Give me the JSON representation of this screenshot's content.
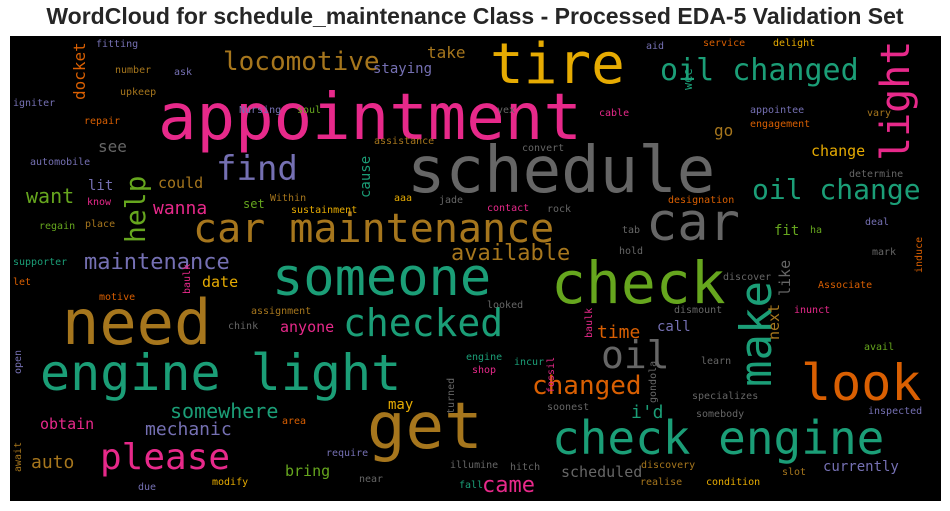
{
  "title": "WordCloud for schedule_maintenance Class - Processed EDA-5 Validation Set",
  "palette": {
    "teal": "#1b9e77",
    "orange": "#d95f02",
    "purple": "#7570b3",
    "pink": "#e7298a",
    "green": "#66a61e",
    "gold": "#e6ab02",
    "brown": "#a6761d",
    "gray": "#666666"
  },
  "words": [
    {
      "text": "appointment",
      "color": "#e7298a",
      "vertical": false
    },
    {
      "text": "schedule",
      "color": "#666666",
      "vertical": false
    },
    {
      "text": "tire",
      "color": "#e6ab02",
      "vertical": false
    },
    {
      "text": "light",
      "color": "#e7298a",
      "vertical": true
    },
    {
      "text": "car maintenance",
      "color": "#a6761d",
      "vertical": false
    },
    {
      "text": "car",
      "color": "#666666",
      "vertical": false
    },
    {
      "text": "someone",
      "color": "#1b9e77",
      "vertical": false
    },
    {
      "text": "check",
      "color": "#66a61e",
      "vertical": false
    },
    {
      "text": "need",
      "color": "#a6761d",
      "vertical": false
    },
    {
      "text": "engine light",
      "color": "#1b9e77",
      "vertical": false
    },
    {
      "text": "get",
      "color": "#a6761d",
      "vertical": false
    },
    {
      "text": "check engine",
      "color": "#1b9e77",
      "vertical": false
    },
    {
      "text": "look",
      "color": "#d95f02",
      "vertical": false
    },
    {
      "text": "make",
      "color": "#1b9e77",
      "vertical": true
    },
    {
      "text": "checked",
      "color": "#1b9e77",
      "vertical": false
    },
    {
      "text": "oil",
      "color": "#666666",
      "vertical": false
    },
    {
      "text": "please",
      "color": "#e7298a",
      "vertical": false
    },
    {
      "text": "find",
      "color": "#7570b3",
      "vertical": false
    },
    {
      "text": "oil changed",
      "color": "#1b9e77",
      "vertical": false
    },
    {
      "text": "oil change",
      "color": "#1b9e77",
      "vertical": false
    },
    {
      "text": "locomotive",
      "color": "#a6761d",
      "vertical": false
    },
    {
      "text": "help",
      "color": "#66a61e",
      "vertical": true
    },
    {
      "text": "maintenance",
      "color": "#7570b3",
      "vertical": false
    },
    {
      "text": "available",
      "color": "#a6761d",
      "vertical": false
    },
    {
      "text": "changed",
      "color": "#d95f02",
      "vertical": false
    },
    {
      "text": "somewhere",
      "color": "#1b9e77",
      "vertical": false
    },
    {
      "text": "came",
      "color": "#e7298a",
      "vertical": false
    },
    {
      "text": "want",
      "color": "#66a61e",
      "vertical": false
    },
    {
      "text": "wanna",
      "color": "#e7298a",
      "vertical": false
    },
    {
      "text": "mechanic",
      "color": "#7570b3",
      "vertical": false
    },
    {
      "text": "auto",
      "color": "#a6761d",
      "vertical": false
    },
    {
      "text": "i'd",
      "color": "#1b9e77",
      "vertical": false
    },
    {
      "text": "time",
      "color": "#d95f02",
      "vertical": false
    },
    {
      "text": "see",
      "color": "#666666",
      "vertical": false
    },
    {
      "text": "could",
      "color": "#a6761d",
      "vertical": false
    },
    {
      "text": "lit",
      "color": "#7570b3",
      "vertical": false
    },
    {
      "text": "staying",
      "color": "#7570b3",
      "vertical": false
    },
    {
      "text": "take",
      "color": "#a6761d",
      "vertical": false
    },
    {
      "text": "docket",
      "color": "#d95f02",
      "vertical": true
    },
    {
      "text": "like",
      "color": "#666666",
      "vertical": true
    },
    {
      "text": "next",
      "color": "#a6761d",
      "vertical": true
    },
    {
      "text": "go",
      "color": "#a6761d",
      "vertical": false
    },
    {
      "text": "change",
      "color": "#e6ab02",
      "vertical": false
    },
    {
      "text": "cause",
      "color": "#1b9e77",
      "vertical": true
    },
    {
      "text": "date",
      "color": "#e6ab02",
      "vertical": false
    },
    {
      "text": "anyone",
      "color": "#e7298a",
      "vertical": false
    },
    {
      "text": "may",
      "color": "#e6ab02",
      "vertical": false
    },
    {
      "text": "bring",
      "color": "#66a61e",
      "vertical": false
    },
    {
      "text": "obtain",
      "color": "#e7298a",
      "vertical": false
    },
    {
      "text": "scheduled",
      "color": "#666666",
      "vertical": false
    },
    {
      "text": "currently",
      "color": "#7570b3",
      "vertical": false
    },
    {
      "text": "call",
      "color": "#7570b3",
      "vertical": false
    },
    {
      "text": "fit",
      "color": "#66a61e",
      "vertical": false
    },
    {
      "text": "set",
      "color": "#66a61e",
      "vertical": false
    },
    {
      "text": "wee",
      "color": "#1b9e77",
      "vertical": true
    },
    {
      "text": "fitting",
      "color": "#7570b3",
      "vertical": false
    },
    {
      "text": "number",
      "color": "#a6761d",
      "vertical": false
    },
    {
      "text": "upkeep",
      "color": "#a6761d",
      "vertical": false
    },
    {
      "text": "ask",
      "color": "#7570b3",
      "vertical": false
    },
    {
      "text": "igniter",
      "color": "#7570b3",
      "vertical": false
    },
    {
      "text": "repair",
      "color": "#d95f02",
      "vertical": false
    },
    {
      "text": "automobile",
      "color": "#7570b3",
      "vertical": false
    },
    {
      "text": "know",
      "color": "#e7298a",
      "vertical": false
    },
    {
      "text": "regain",
      "color": "#66a61e",
      "vertical": false
    },
    {
      "text": "place",
      "color": "#a6761d",
      "vertical": false
    },
    {
      "text": "supporter",
      "color": "#1b9e77",
      "vertical": false
    },
    {
      "text": "let",
      "color": "#d95f02",
      "vertical": false
    },
    {
      "text": "motive",
      "color": "#d95f02",
      "vertical": false
    },
    {
      "text": "baulk",
      "color": "#e7298a",
      "vertical": true
    },
    {
      "text": "assignment",
      "color": "#a6761d",
      "vertical": false
    },
    {
      "text": "chink",
      "color": "#666666",
      "vertical": false
    },
    {
      "text": "open",
      "color": "#7570b3",
      "vertical": true
    },
    {
      "text": "await",
      "color": "#a6761d",
      "vertical": true
    },
    {
      "text": "due",
      "color": "#7570b3",
      "vertical": false
    },
    {
      "text": "modify",
      "color": "#e6ab02",
      "vertical": false
    },
    {
      "text": "require",
      "color": "#7570b3",
      "vertical": false
    },
    {
      "text": "area",
      "color": "#d95f02",
      "vertical": false
    },
    {
      "text": "near",
      "color": "#666666",
      "vertical": false
    },
    {
      "text": "Nursing",
      "color": "#7570b3",
      "vertical": false
    },
    {
      "text": "soul",
      "color": "#66a61e",
      "vertical": false
    },
    {
      "text": "vex",
      "color": "#666666",
      "vertical": false
    },
    {
      "text": "assistance",
      "color": "#a6761d",
      "vertical": false
    },
    {
      "text": "convert",
      "color": "#666666",
      "vertical": false
    },
    {
      "text": "Within",
      "color": "#a6761d",
      "vertical": false
    },
    {
      "text": "sustainment",
      "color": "#e6ab02",
      "vertical": false
    },
    {
      "text": "aaa",
      "color": "#e6ab02",
      "vertical": false
    },
    {
      "text": "jade",
      "color": "#666666",
      "vertical": false
    },
    {
      "text": "contact",
      "color": "#e7298a",
      "vertical": false
    },
    {
      "text": "rock",
      "color": "#666666",
      "vertical": false
    },
    {
      "text": "designation",
      "color": "#d95f02",
      "vertical": false
    },
    {
      "text": "tab",
      "color": "#666666",
      "vertical": false
    },
    {
      "text": "hold",
      "color": "#666666",
      "vertical": false
    },
    {
      "text": "aid",
      "color": "#7570b3",
      "vertical": false
    },
    {
      "text": "service",
      "color": "#d95f02",
      "vertical": false
    },
    {
      "text": "delight",
      "color": "#e6ab02",
      "vertical": false
    },
    {
      "text": "cable",
      "color": "#e7298a",
      "vertical": false
    },
    {
      "text": "appointee",
      "color": "#7570b3",
      "vertical": false
    },
    {
      "text": "vary",
      "color": "#a6761d",
      "vertical": false
    },
    {
      "text": "engagement",
      "color": "#d95f02",
      "vertical": false
    },
    {
      "text": "determine",
      "color": "#666666",
      "vertical": false
    },
    {
      "text": "deal",
      "color": "#7570b3",
      "vertical": false
    },
    {
      "text": "ha",
      "color": "#66a61e",
      "vertical": false
    },
    {
      "text": "induce",
      "color": "#d95f02",
      "vertical": true
    },
    {
      "text": "mark",
      "color": "#666666",
      "vertical": false
    },
    {
      "text": "discover",
      "color": "#666666",
      "vertical": false
    },
    {
      "text": "Associate",
      "color": "#d95f02",
      "vertical": false
    },
    {
      "text": "baulk",
      "color": "#e7298a",
      "vertical": true
    },
    {
      "text": "looked",
      "color": "#666666",
      "vertical": false
    },
    {
      "text": "dismount",
      "color": "#666666",
      "vertical": false
    },
    {
      "text": "inunct",
      "color": "#e7298a",
      "vertical": false
    },
    {
      "text": "fossil",
      "color": "#e7298a",
      "vertical": true
    },
    {
      "text": "engine",
      "color": "#1b9e77",
      "vertical": false
    },
    {
      "text": "incur",
      "color": "#1b9e77",
      "vertical": false
    },
    {
      "text": "shop",
      "color": "#e7298a",
      "vertical": false
    },
    {
      "text": "gondola",
      "color": "#666666",
      "vertical": true
    },
    {
      "text": "learn",
      "color": "#666666",
      "vertical": false
    },
    {
      "text": "avail",
      "color": "#66a61e",
      "vertical": false
    },
    {
      "text": "turned",
      "color": "#666666",
      "vertical": true
    },
    {
      "text": "soonest",
      "color": "#666666",
      "vertical": false
    },
    {
      "text": "specializes",
      "color": "#666666",
      "vertical": false
    },
    {
      "text": "somebody",
      "color": "#666666",
      "vertical": false
    },
    {
      "text": "inspected",
      "color": "#7570b3",
      "vertical": false
    },
    {
      "text": "illumine",
      "color": "#666666",
      "vertical": false
    },
    {
      "text": "hitch",
      "color": "#666666",
      "vertical": false
    },
    {
      "text": "discovery",
      "color": "#a6761d",
      "vertical": false
    },
    {
      "text": "slot",
      "color": "#a6761d",
      "vertical": false
    },
    {
      "text": "fall",
      "color": "#1b9e77",
      "vertical": false
    },
    {
      "text": "realise",
      "color": "#a6761d",
      "vertical": false
    },
    {
      "text": "condition",
      "color": "#e6ab02",
      "vertical": false
    }
  ]
}
